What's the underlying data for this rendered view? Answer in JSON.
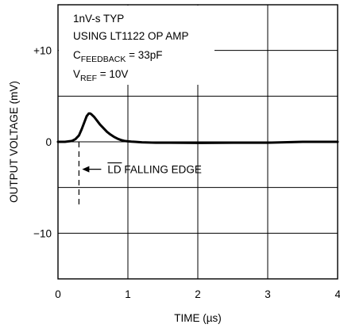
{
  "chart_data": {
    "type": "line",
    "xlabel": "TIME (µs)",
    "ylabel": "OUTPUT VOLTAGE (mV)",
    "xlim": [
      0,
      4
    ],
    "ylim": [
      -15,
      15
    ],
    "grid": true,
    "x_ticks": [
      {
        "value": 0,
        "label": "0"
      },
      {
        "value": 1,
        "label": "1"
      },
      {
        "value": 2,
        "label": "2"
      },
      {
        "value": 3,
        "label": "3"
      },
      {
        "value": 4,
        "label": "4"
      }
    ],
    "y_ticks": [
      {
        "value": 10,
        "label": "+10"
      },
      {
        "value": 0,
        "label": "0"
      },
      {
        "value": -10,
        "label": "−10"
      }
    ],
    "series": [
      {
        "color": "#000000",
        "x": [
          0,
          0.1,
          0.2,
          0.25,
          0.3,
          0.34,
          0.38,
          0.41,
          0.44,
          0.46,
          0.48,
          0.52,
          0.56,
          0.6,
          0.65,
          0.7,
          0.75,
          0.8,
          0.85,
          0.9,
          0.95,
          1.0,
          1.05,
          1.1,
          1.2,
          1.4,
          1.6,
          2.0,
          2.5,
          3.0,
          3.5,
          4.0
        ],
        "y": [
          0,
          0,
          0.1,
          0.3,
          0.7,
          1.4,
          2.2,
          2.8,
          3.1,
          3.1,
          3.0,
          2.7,
          2.3,
          1.9,
          1.5,
          1.1,
          0.8,
          0.55,
          0.35,
          0.2,
          0.1,
          0.05,
          0.02,
          0,
          -0.05,
          -0.1,
          -0.1,
          -0.12,
          -0.1,
          -0.1,
          0,
          0
        ]
      }
    ],
    "annotations": {
      "lines": [
        {
          "text": "1nV-s TYP"
        },
        {
          "text": "USING LT1122 OP AMP"
        },
        {
          "main": "C",
          "sub": "FEEDBACK",
          "rest": " = 33pF"
        },
        {
          "main": "V",
          "sub": "REF",
          "rest": " = 10V"
        }
      ],
      "edge_marker": {
        "x": 0.3,
        "y_top": 0,
        "y_bottom": -7,
        "label_prefix": "LD",
        "label_suffix": " FALLING EDGE"
      }
    }
  }
}
